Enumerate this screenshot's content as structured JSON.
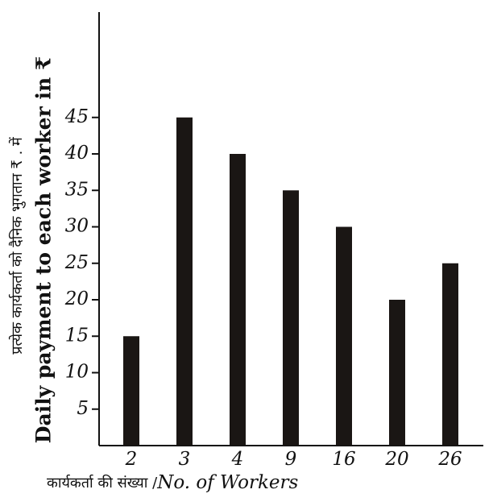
{
  "chart_data": {
    "type": "bar",
    "y_label_hindi": "प्रत्येक कार्यकर्ता को दैनिक भुगतान ₹ . में",
    "y_label": "Daily payment to each worker in ₹",
    "x_label_hindi": "कार्यकर्ता की संख्या /",
    "x_label": "No. of Workers",
    "categories": [
      "2",
      "3",
      "4",
      "9",
      "16",
      "20",
      "26"
    ],
    "values": [
      15,
      45,
      40,
      35,
      30,
      20,
      25
    ],
    "color": "#1a1614",
    "ylim": [
      0,
      60
    ],
    "yticks": [
      5,
      10,
      15,
      20,
      25,
      30,
      35,
      40,
      45
    ],
    "grid": false
  }
}
